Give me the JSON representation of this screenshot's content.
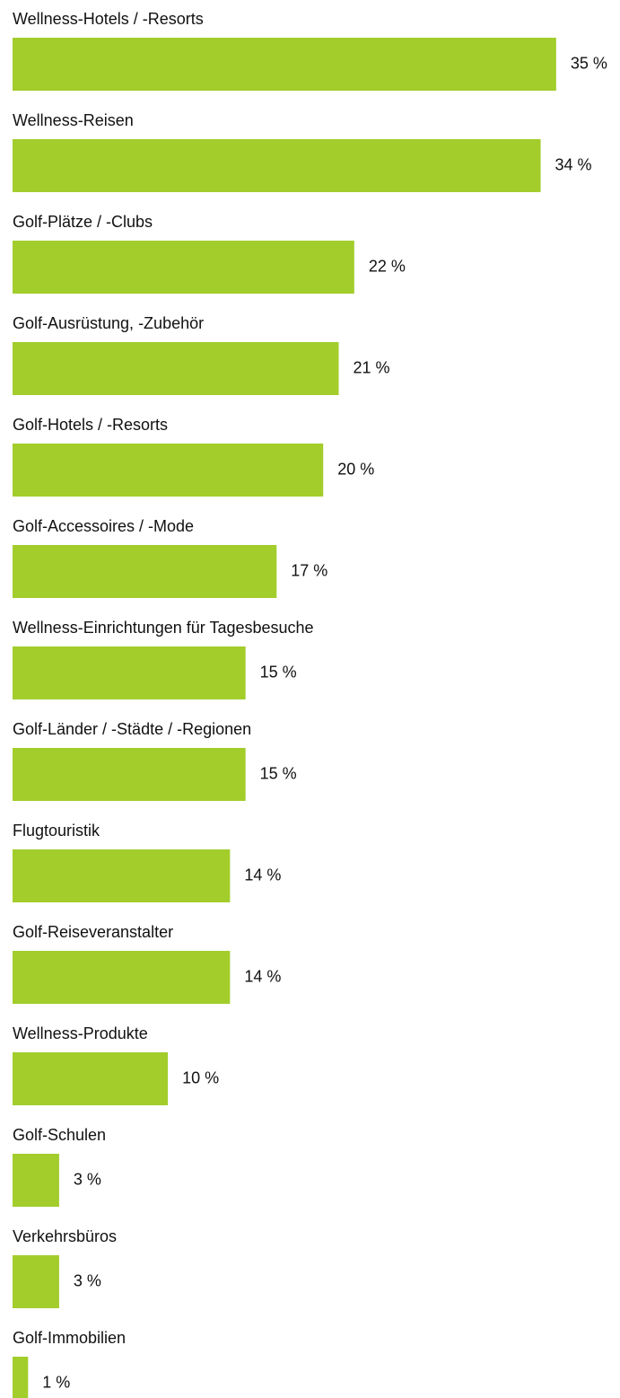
{
  "chart_data": {
    "type": "bar",
    "orientation": "horizontal",
    "color": "#a2cd2b",
    "categories": [
      "Wellness-Hotels / -Resorts",
      "Wellness-Reisen",
      "Golf-Plätze / -Clubs",
      "Golf-Ausrüstung, -Zubehör",
      "Golf-Hotels / -Resorts",
      "Golf-Accessoires / -Mode",
      "Wellness-Einrichtungen für Tagesbesuche",
      "Golf-Länder / -Städte / -Regionen",
      "Flugtouristik",
      "Golf-Reiseveranstalter",
      "Wellness-Produkte",
      "Golf-Schulen",
      "Verkehrsbüros",
      "Golf-Immobilien"
    ],
    "values": [
      35,
      34,
      22,
      21,
      20,
      17,
      15,
      15,
      14,
      14,
      10,
      3,
      3,
      1
    ],
    "value_labels": [
      "35 %",
      "34 %",
      "22 %",
      "21 %",
      "20 %",
      "17 %",
      "15 %",
      "15 %",
      "14 %",
      "14 %",
      "10 %",
      "3 %",
      "3 %",
      "1 %"
    ]
  }
}
